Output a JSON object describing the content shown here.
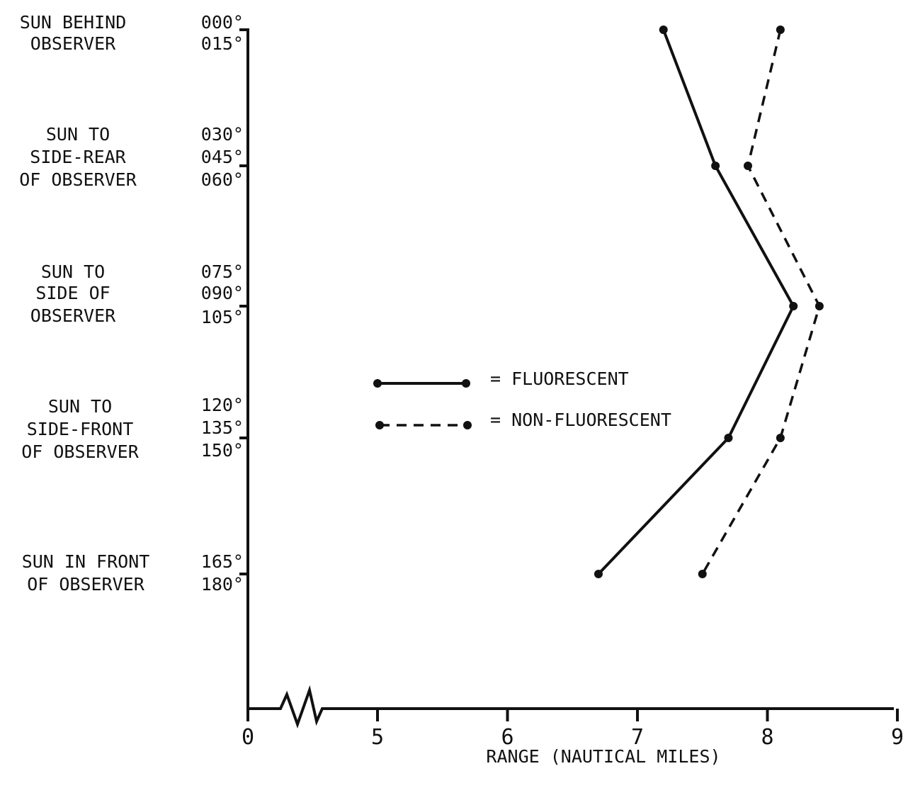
{
  "chart_data": {
    "type": "line",
    "title": "",
    "xlabel": "RANGE (NAUTICAL MILES)",
    "ylabel": "",
    "xlim": [
      0,
      9
    ],
    "x_axis_break": true,
    "x_ticks": [
      "0",
      "5",
      "6",
      "7",
      "8",
      "9"
    ],
    "y_categories": [
      "015°",
      "060°",
      "105°",
      "150°",
      "180°"
    ],
    "y_angle_labels": [
      "000°",
      "015°",
      "030°",
      "045°",
      "060°",
      "075°",
      "090°",
      "105°",
      "120°",
      "135°",
      "150°",
      "165°",
      "180°"
    ],
    "y_group_labels": [
      [
        "SUN BEHIND",
        "OBSERVER"
      ],
      [
        "SUN TO",
        "SIDE-REAR",
        "OF OBSERVER"
      ],
      [
        "SUN TO",
        "SIDE OF",
        "OBSERVER"
      ],
      [
        "SUN TO",
        "SIDE-FRONT",
        "OF OBSERVER"
      ],
      [
        "SUN IN FRONT",
        "OF OBSERVER"
      ]
    ],
    "series": [
      {
        "name": "FLUORESCENT",
        "style": "solid",
        "values": [
          7.2,
          7.6,
          8.2,
          7.7,
          6.7
        ]
      },
      {
        "name": "NON-FLUORESCENT",
        "style": "dashed",
        "values": [
          8.1,
          7.85,
          8.4,
          8.1,
          7.5
        ]
      }
    ],
    "legend": {
      "placement": "center",
      "entries": [
        "= FLUORESCENT",
        "= NON-FLUORESCENT"
      ]
    },
    "grid": false
  }
}
